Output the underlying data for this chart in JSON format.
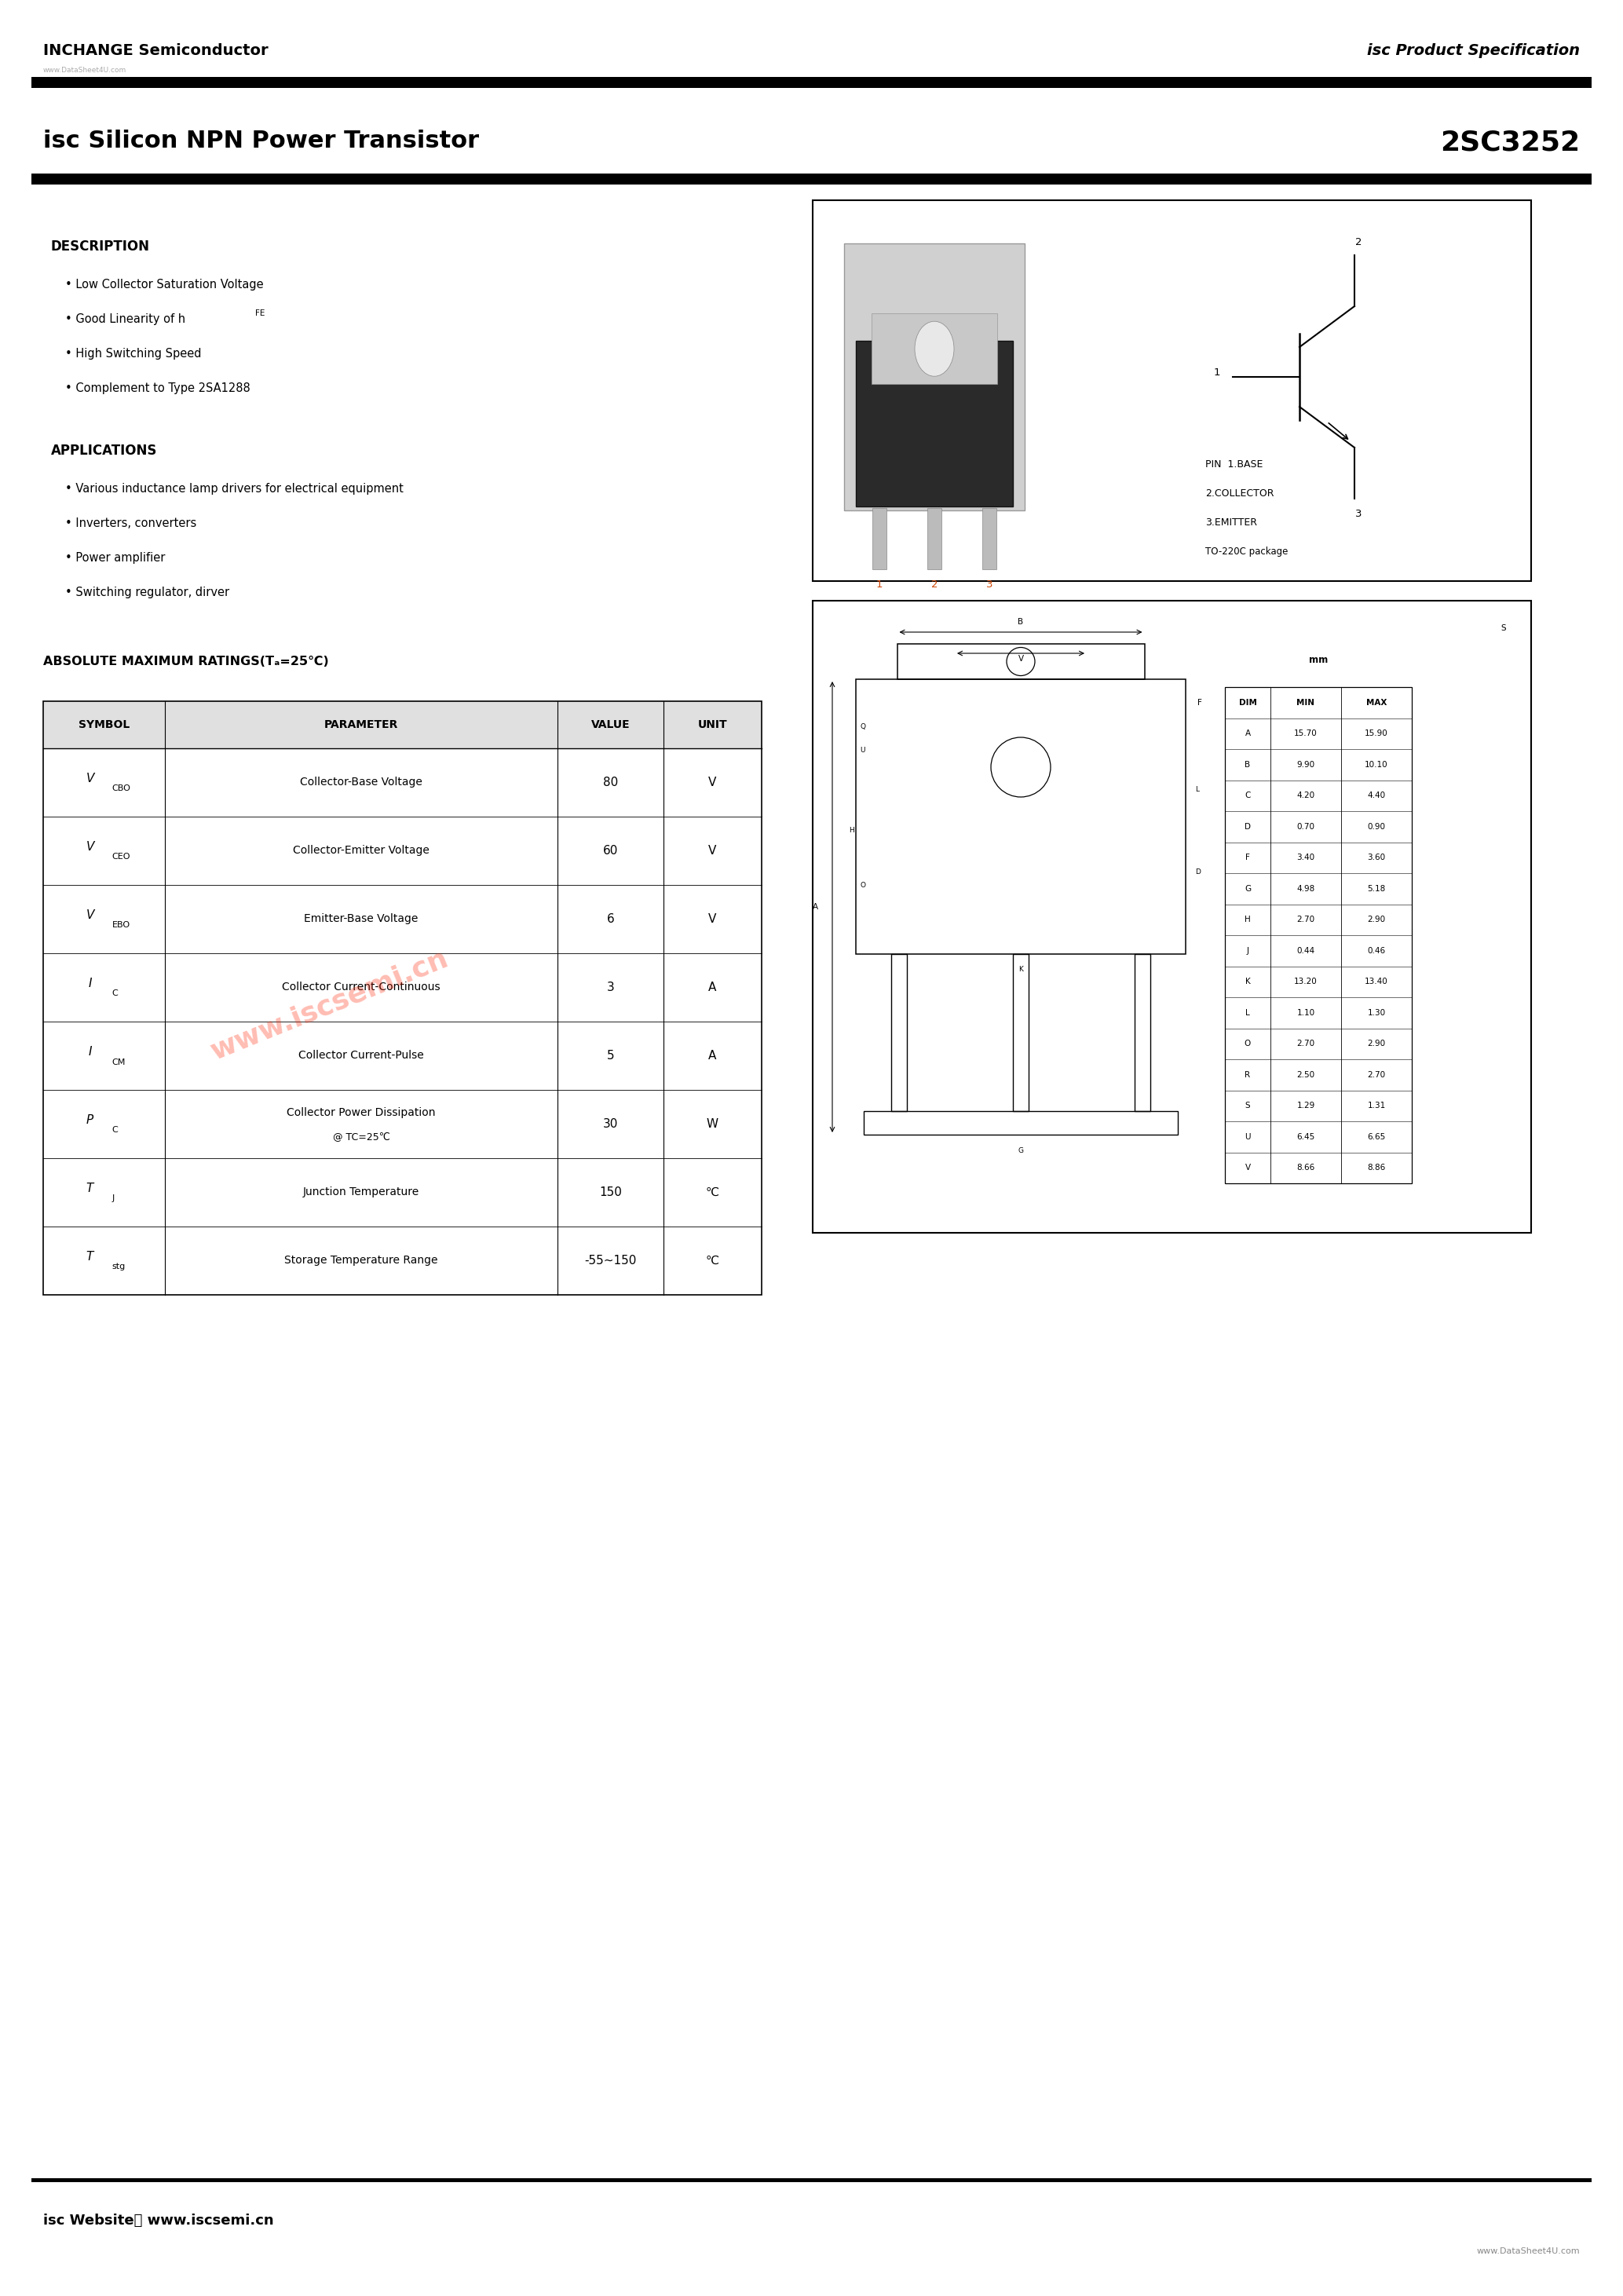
{
  "page_width": 20.67,
  "page_height": 29.24,
  "bg_color": "#ffffff",
  "header_company": "INCHANGE Semiconductor",
  "header_spec": "isc Product Specification",
  "header_url": "www.DataSheet4U.com",
  "title_left": "isc Silicon NPN Power Transistor",
  "title_right": "2SC3252",
  "description_title": "DESCRIPTION",
  "description_items": [
    "Low Collector Saturation Voltage",
    "Good Linearity of hFE",
    "High Switching Speed",
    "Complement to Type 2SA1288"
  ],
  "applications_title": "APPLICATIONS",
  "applications_items": [
    "Various inductance lamp drivers for electrical equipment",
    "Inverters, converters",
    "Power amplifier",
    "Switching regulator, dirver"
  ],
  "ratings_title": "ABSOLUTE MAXIMUM RATINGS(Tₐ=25℃)",
  "table_headers": [
    "SYMBOL",
    "PARAMETER",
    "VALUE",
    "UNIT"
  ],
  "table_rows": [
    [
      "VCBO",
      "Collector-Base Voltage",
      "80",
      "V"
    ],
    [
      "VCEO",
      "Collector-Emitter Voltage",
      "60",
      "V"
    ],
    [
      "VEBO",
      "Emitter-Base Voltage",
      "6",
      "V"
    ],
    [
      "IC",
      "Collector Current-Continuous",
      "3",
      "A"
    ],
    [
      "ICM",
      "Collector Current-Pulse",
      "5",
      "A"
    ],
    [
      "PC",
      "Collector Power Dissipation\n@ TC=25℃",
      "30",
      "W"
    ],
    [
      "TJ",
      "Junction Temperature",
      "150",
      "℃"
    ],
    [
      "Tstg",
      "Storage Temperature Range",
      "-55~150",
      "℃"
    ]
  ],
  "symbol_display": {
    "VCBO": [
      "V",
      "CBO"
    ],
    "VCEO": [
      "V",
      "CEO"
    ],
    "VEBO": [
      "V",
      "EBO"
    ],
    "IC": [
      "I",
      "C"
    ],
    "ICM": [
      "I",
      "CM"
    ],
    "PC": [
      "P",
      "C"
    ],
    "TJ": [
      "T",
      "J"
    ],
    "Tstg": [
      "T",
      "stg"
    ]
  },
  "dim_rows": [
    [
      "DIM",
      "MIN",
      "MAX"
    ],
    [
      "A",
      "15.70",
      "15.90"
    ],
    [
      "B",
      "9.90",
      "10.10"
    ],
    [
      "C",
      "4.20",
      "4.40"
    ],
    [
      "D",
      "0.70",
      "0.90"
    ],
    [
      "F",
      "3.40",
      "3.60"
    ],
    [
      "G",
      "4.98",
      "5.18"
    ],
    [
      "H",
      "2.70",
      "2.90"
    ],
    [
      "J",
      "0.44",
      "0.46"
    ],
    [
      "K",
      "13.20",
      "13.40"
    ],
    [
      "L",
      "1.10",
      "1.30"
    ],
    [
      "O",
      "2.70",
      "2.90"
    ],
    [
      "R",
      "2.50",
      "2.70"
    ],
    [
      "S",
      "1.29",
      "1.31"
    ],
    [
      "U",
      "6.45",
      "6.65"
    ],
    [
      "V",
      "8.66",
      "8.86"
    ]
  ],
  "footer_website": "isc Website： www.iscsemi.cn",
  "footer_url": "www.DataSheet4U.com",
  "watermark_text": "www.iscsemi.cn",
  "pin_info": [
    "PIN  1.BASE",
    "2.COLLECTOR",
    "3.EMITTER",
    "TO-220C package"
  ]
}
